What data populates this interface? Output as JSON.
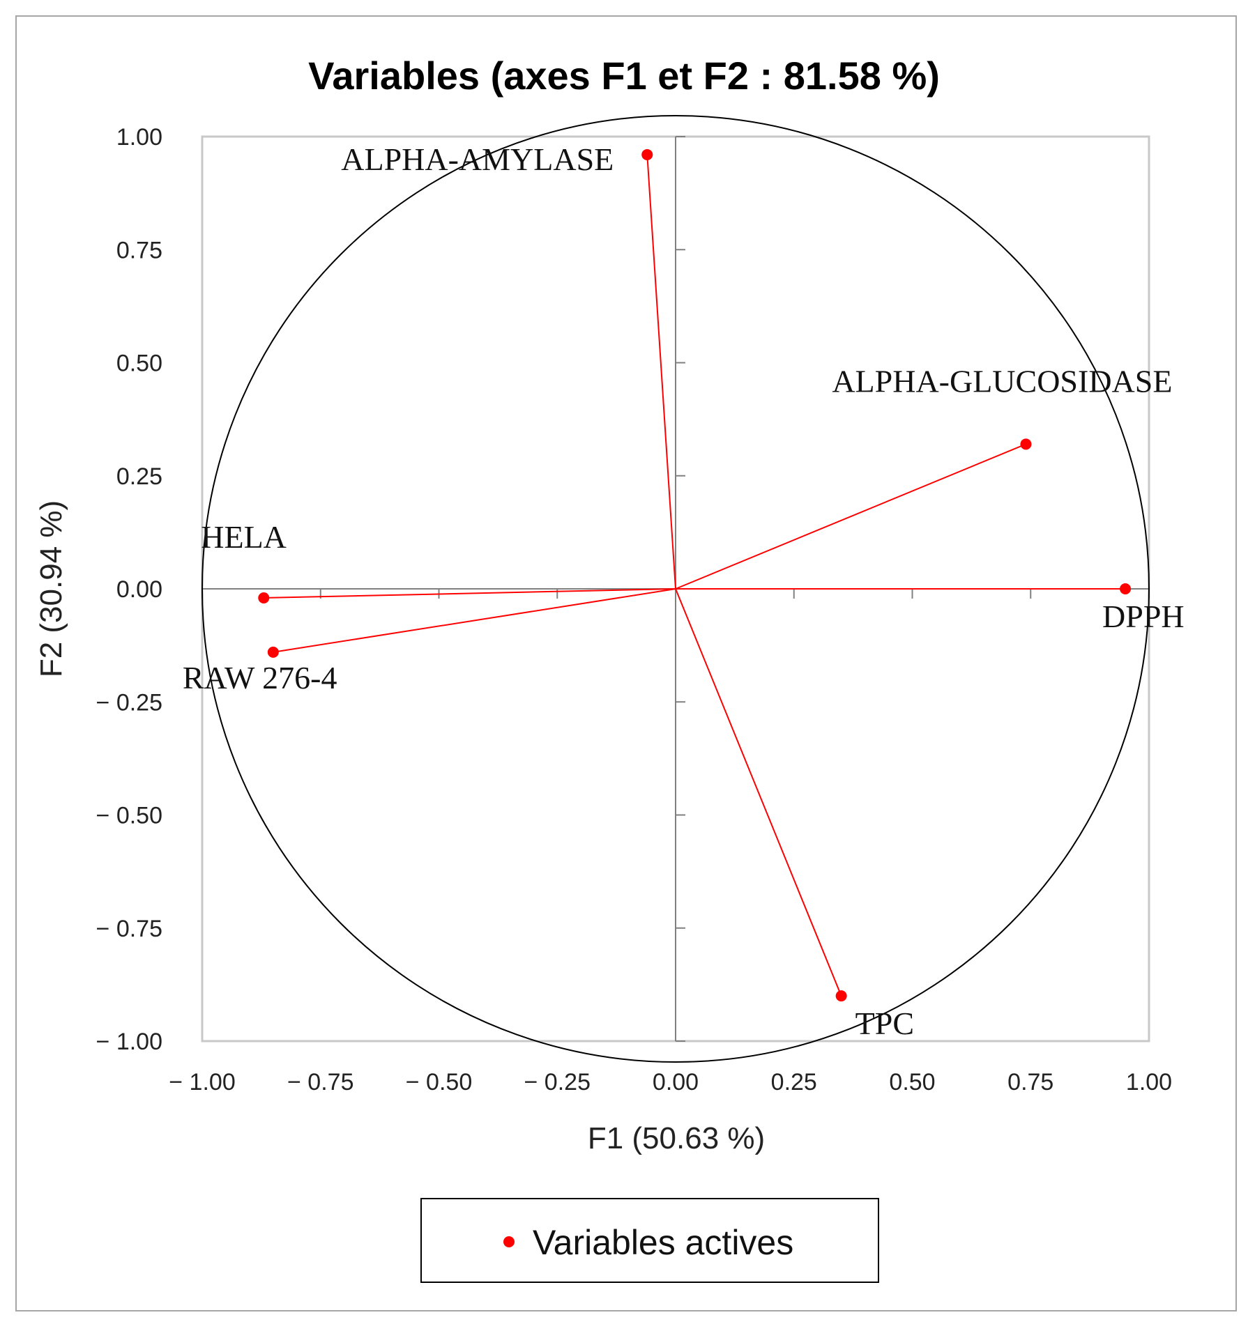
{
  "chart_data": {
    "type": "scatter",
    "title": "Variables (axes F1 et F2 : 81.58 %)",
    "xlabel": "F1 (50.63 %)",
    "ylabel": "F2 (30.94 %)",
    "xlim": [
      -1,
      1
    ],
    "ylim": [
      -1,
      1
    ],
    "xticks": [
      "− 1.00",
      "− 0.75",
      "− 0.50",
      "− 0.25",
      "0.00",
      "0.25",
      "0.50",
      "0.75",
      "1.00"
    ],
    "yticks": [
      "1.00",
      "0.75",
      "0.50",
      "0.25",
      "0.00",
      "− 0.25",
      "− 0.50",
      "− 0.75",
      "− 1.00"
    ],
    "legend": {
      "position": "bottom",
      "label": "Variables actives"
    },
    "colors": {
      "series": "#ff0000",
      "circle": "#000000",
      "axis": "#808080"
    },
    "points": [
      {
        "label": "ALPHA-AMYLASE",
        "x": -0.06,
        "y": 0.96
      },
      {
        "label": "ALPHA-GLUCOSIDASE",
        "x": 0.74,
        "y": 0.32
      },
      {
        "label": "HELA",
        "x": -0.87,
        "y": -0.02
      },
      {
        "label": "RAW 276-4",
        "x": -0.85,
        "y": -0.14
      },
      {
        "label": "DPPH",
        "x": 0.95,
        "y": 0.0
      },
      {
        "label": "TPC",
        "x": 0.35,
        "y": -0.9
      }
    ]
  }
}
